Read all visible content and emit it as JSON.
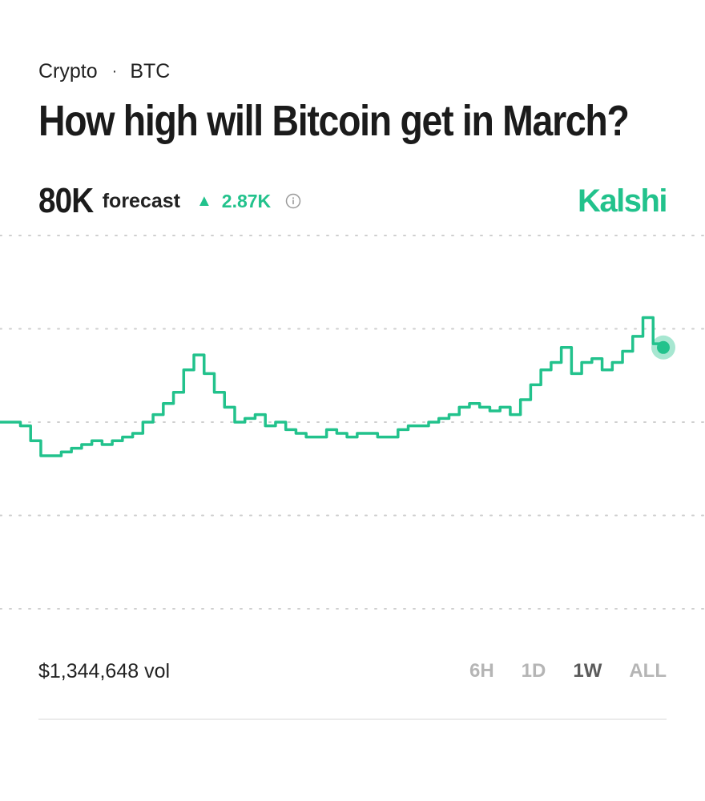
{
  "breadcrumb": {
    "category": "Crypto",
    "separator": "·",
    "asset": "BTC"
  },
  "title": "How high will Bitcoin get in March?",
  "forecast": {
    "value": "80K",
    "label": "forecast",
    "change": "2.87K",
    "change_direction": "up",
    "info_icon": "info-circle-icon"
  },
  "brand": "Kalshi",
  "colors": {
    "accent": "#22c28c",
    "grid": "#cfcfcf",
    "text": "#1b1b1b"
  },
  "chart_data": {
    "type": "line",
    "series": [
      {
        "values": [
          0.5,
          0.5,
          0.49,
          0.45,
          0.41,
          0.41,
          0.42,
          0.43,
          0.44,
          0.45,
          0.44,
          0.45,
          0.46,
          0.47,
          0.5,
          0.52,
          0.55,
          0.58,
          0.64,
          0.68,
          0.63,
          0.58,
          0.54,
          0.5,
          0.51,
          0.52,
          0.49,
          0.5,
          0.48,
          0.47,
          0.46,
          0.46,
          0.48,
          0.47,
          0.46,
          0.47,
          0.47,
          0.46,
          0.46,
          0.48,
          0.49,
          0.49,
          0.5,
          0.51,
          0.52,
          0.54,
          0.55,
          0.54,
          0.53,
          0.54,
          0.52,
          0.56,
          0.6,
          0.64,
          0.66,
          0.7,
          0.63,
          0.66,
          0.67,
          0.64,
          0.66,
          0.69,
          0.73,
          0.78,
          0.71,
          0.7
        ]
      }
    ],
    "gridlines": 5,
    "grid": "dotted horizontal",
    "marker": "last point"
  },
  "volume": "$1,344,648 vol",
  "ranges": [
    {
      "label": "6H",
      "active": false
    },
    {
      "label": "1D",
      "active": false
    },
    {
      "label": "1W",
      "active": true
    },
    {
      "label": "ALL",
      "active": false
    }
  ]
}
